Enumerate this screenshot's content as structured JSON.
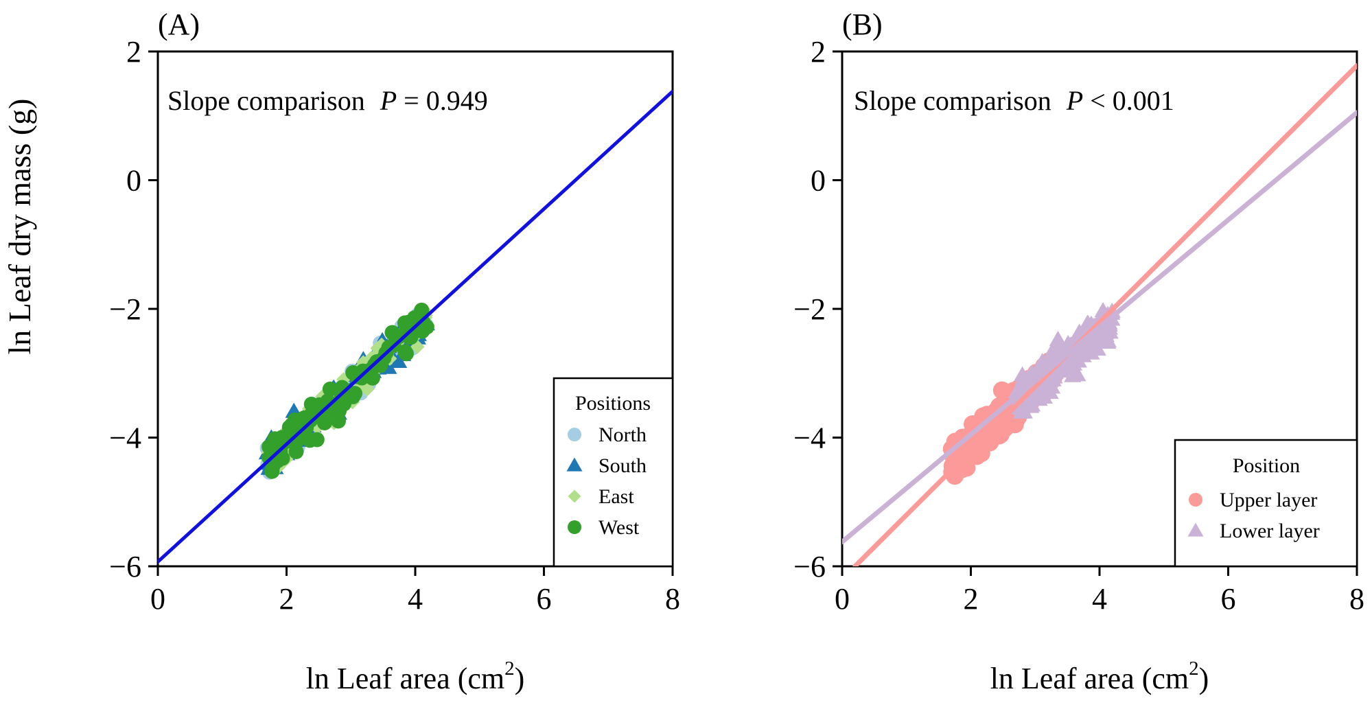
{
  "figure": {
    "ylabel": "ln  Leaf dry mass (g)",
    "xlabel_prefix": "ln  Leaf area (cm",
    "xlabel_sup": "2",
    "xlabel_suffix": ")"
  },
  "chart_data": [
    {
      "panel": "(A)",
      "type": "scatter",
      "annotation_prefix": "Slope comparison",
      "annotation_p": "P",
      "annotation_value": "= 0.949",
      "xlim": [
        0,
        8
      ],
      "ylim": [
        -6,
        2
      ],
      "x_ticks": [
        0,
        2,
        4,
        6,
        8
      ],
      "y_ticks": [
        2,
        0,
        -2,
        -4,
        -6
      ],
      "y_tick_labels": [
        "2",
        "0",
        "−2",
        "−4",
        "−6"
      ],
      "legend_title": "Positions",
      "legend_position": "bottom-right",
      "series": [
        {
          "name": "North",
          "marker": "circle",
          "color": "#a6cee3"
        },
        {
          "name": "South",
          "marker": "triangle",
          "color": "#1f78b4"
        },
        {
          "name": "East",
          "marker": "diamond",
          "color": "#b2df8a"
        },
        {
          "name": "West",
          "marker": "circle",
          "color": "#33a02c"
        }
      ],
      "point_cloud": {
        "x_range": [
          1.7,
          4.2
        ],
        "y_range": [
          -4.6,
          -2.0
        ]
      },
      "fit_lines": [
        {
          "name": "Common fit",
          "color": "#1010e0",
          "x": [
            0,
            8
          ],
          "y": [
            -5.93,
            1.38
          ]
        }
      ]
    },
    {
      "panel": "(B)",
      "type": "scatter",
      "annotation_prefix": "Slope comparison",
      "annotation_p": "P",
      "annotation_value": "< 0.001",
      "xlim": [
        0,
        8
      ],
      "ylim": [
        -6,
        2
      ],
      "x_ticks": [
        0,
        2,
        4,
        6,
        8
      ],
      "y_ticks": [
        2,
        0,
        -2,
        -4,
        -6
      ],
      "y_tick_labels": [
        "2",
        "0",
        "−2",
        "−4",
        "−6"
      ],
      "legend_title": "Position",
      "legend_position": "bottom-right",
      "series": [
        {
          "name": "Upper layer",
          "marker": "circle",
          "color": "#fb9a99"
        },
        {
          "name": "Lower layer",
          "marker": "triangle",
          "color": "#cab2d6"
        }
      ],
      "point_cloud": {
        "x_range": [
          1.7,
          4.2
        ],
        "y_range": [
          -4.6,
          -2.0
        ]
      },
      "fit_lines": [
        {
          "name": "Upper layer fit",
          "color": "#fb9a99",
          "x": [
            0.2,
            8
          ],
          "y": [
            -6,
            1.78
          ]
        },
        {
          "name": "Lower layer fit",
          "color": "#cab2d6",
          "x": [
            0,
            8
          ],
          "y": [
            -5.62,
            1.05
          ]
        }
      ]
    }
  ]
}
